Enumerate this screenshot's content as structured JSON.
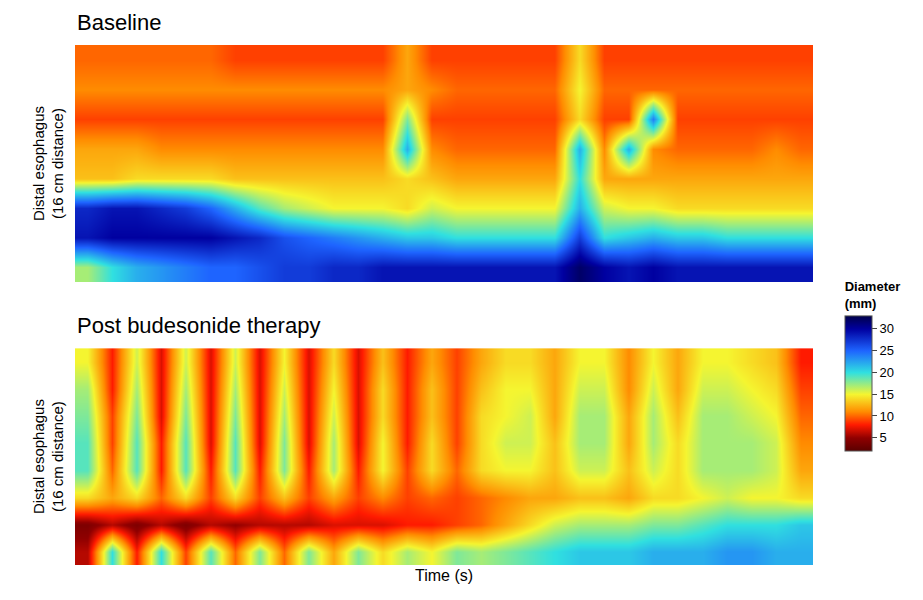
{
  "chart_data": [
    {
      "type": "heatmap",
      "title": "Baseline",
      "ylabel": "Distal esophagus (16 cm distance)",
      "tick_labels": false,
      "cells": [
        [
          17,
          20,
          22,
          23,
          24,
          25,
          25,
          26,
          27,
          27,
          28,
          28,
          29,
          29,
          29,
          29,
          29,
          29,
          29,
          29,
          32,
          30,
          29,
          30,
          29,
          29,
          29,
          29,
          29,
          29
        ],
        [
          29,
          30,
          30,
          30,
          30,
          30,
          29,
          28,
          26,
          25,
          24,
          23,
          22,
          21,
          21,
          20,
          20,
          20,
          20,
          20,
          27,
          20,
          21,
          22,
          21,
          21,
          20,
          20,
          20,
          20
        ],
        [
          28,
          29,
          29,
          28,
          27,
          25,
          22,
          19,
          17,
          16,
          15,
          15,
          15,
          14,
          16,
          15,
          15,
          15,
          15,
          15,
          22,
          16,
          15,
          15,
          14,
          14,
          14,
          14,
          14,
          14
        ],
        [
          13,
          13,
          14,
          14,
          14,
          14,
          13,
          13,
          13,
          13,
          13,
          13,
          13,
          14,
          13,
          12,
          12,
          12,
          12,
          12,
          20,
          12,
          12,
          12,
          12,
          12,
          12,
          12,
          12,
          12
        ],
        [
          12,
          12,
          12,
          11,
          11,
          11,
          11,
          11,
          11,
          11,
          11,
          11,
          11,
          22,
          11,
          10,
          10,
          10,
          10,
          10,
          22,
          11,
          22,
          11,
          10,
          10,
          10,
          10,
          11,
          10
        ],
        [
          9,
          9,
          9,
          9,
          9,
          9,
          9,
          9,
          9,
          9,
          9,
          9,
          9,
          18,
          9,
          9,
          9,
          9,
          9,
          9,
          14,
          9,
          9,
          24,
          9,
          9,
          9,
          9,
          9,
          9
        ],
        [
          11,
          11,
          11,
          11,
          11,
          11,
          11,
          11,
          11,
          11,
          11,
          11,
          11,
          12,
          11,
          10,
          10,
          10,
          10,
          10,
          15,
          10,
          10,
          10,
          10,
          10,
          10,
          10,
          10,
          10
        ],
        [
          10,
          10,
          10,
          10,
          10,
          10,
          9,
          9,
          9,
          9,
          9,
          9,
          9,
          12,
          9,
          9,
          9,
          9,
          9,
          9,
          14,
          9,
          9,
          9,
          9,
          9,
          9,
          9,
          9,
          9
        ]
      ],
      "colorbar": {
        "title": "Diameter (mm)",
        "range": [
          2,
          33
        ],
        "ticks": [
          5,
          10,
          15,
          20,
          25,
          30
        ]
      }
    },
    {
      "type": "heatmap",
      "title": "Post budesonide therapy",
      "ylabel": "Distal esophagus (16 cm distance)",
      "xlabel": "Time (s)",
      "tick_labels": false,
      "cells": [
        [
          6,
          20,
          8,
          20,
          9,
          19,
          10,
          18,
          10,
          18,
          12,
          18,
          14,
          17,
          15,
          18,
          17,
          18,
          19,
          20,
          21,
          21,
          21,
          22,
          22,
          22,
          23,
          23,
          22,
          22
        ],
        [
          4,
          6,
          4,
          6,
          4,
          6,
          5,
          6,
          6,
          6,
          7,
          7,
          7,
          8,
          8,
          9,
          10,
          12,
          14,
          16,
          17,
          17,
          17,
          18,
          18,
          19,
          20,
          20,
          20,
          21
        ],
        [
          14,
          12,
          14,
          10,
          14,
          9,
          14,
          9,
          13,
          9,
          12,
          9,
          11,
          9,
          10,
          9,
          10,
          11,
          12,
          12,
          13,
          13,
          12,
          14,
          14,
          15,
          16,
          15,
          15,
          14
        ],
        [
          19,
          10,
          19,
          8,
          19,
          8,
          19,
          8,
          18,
          8,
          17,
          8,
          15,
          9,
          14,
          10,
          14,
          15,
          15,
          13,
          16,
          16,
          13,
          16,
          14,
          17,
          17,
          17,
          16,
          12
        ],
        [
          19,
          9,
          19,
          8,
          19,
          7,
          19,
          7,
          18,
          7,
          17,
          7,
          15,
          8,
          14,
          9,
          14,
          16,
          16,
          13,
          17,
          17,
          12,
          17,
          14,
          17,
          17,
          17,
          16,
          11
        ],
        [
          18,
          9,
          18,
          7,
          18,
          7,
          18,
          7,
          17,
          7,
          16,
          7,
          14,
          8,
          13,
          9,
          14,
          15,
          16,
          12,
          17,
          17,
          12,
          17,
          13,
          17,
          17,
          16,
          15,
          10
        ],
        [
          17,
          8,
          17,
          7,
          17,
          7,
          17,
          7,
          16,
          7,
          15,
          7,
          14,
          8,
          13,
          9,
          13,
          15,
          15,
          12,
          16,
          16,
          11,
          16,
          12,
          16,
          16,
          15,
          14,
          9
        ],
        [
          15,
          8,
          16,
          7,
          16,
          7,
          16,
          7,
          15,
          7,
          14,
          7,
          13,
          8,
          12,
          9,
          12,
          14,
          14,
          12,
          15,
          15,
          11,
          15,
          12,
          15,
          15,
          14,
          13,
          8
        ]
      ]
    }
  ]
}
